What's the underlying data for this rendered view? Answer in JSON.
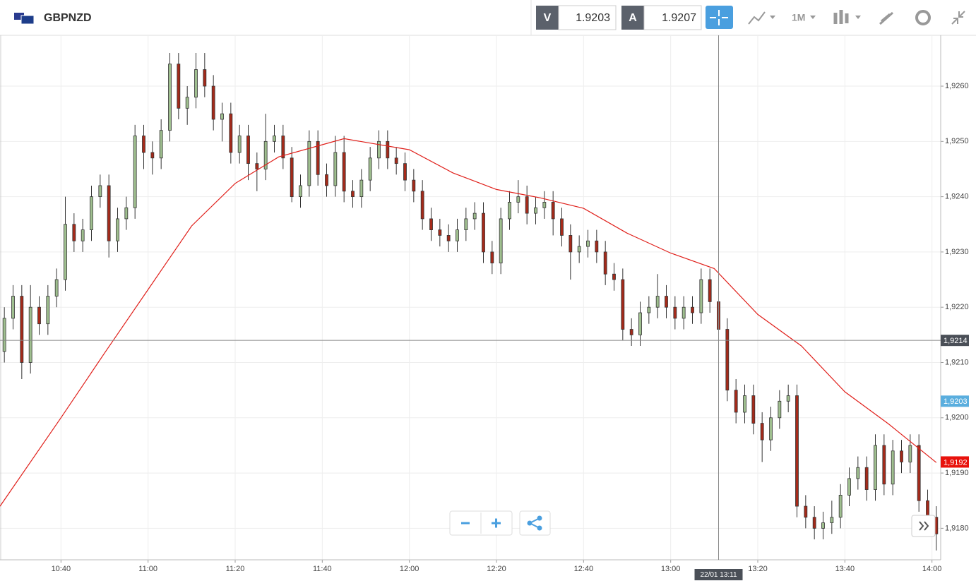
{
  "header": {
    "symbol": "GBPNZD",
    "sell_label": "V",
    "sell_price": "1.9203",
    "buy_label": "A",
    "buy_price": "1.9207",
    "timeframe": "1M"
  },
  "chart_data": {
    "type": "candlestick",
    "x": [
      "10:27",
      "10:29",
      "10:31",
      "10:33",
      "10:35",
      "10:37",
      "10:39",
      "10:41",
      "10:43",
      "10:45",
      "10:47",
      "10:49",
      "10:51",
      "10:53",
      "10:55",
      "10:57",
      "10:59",
      "11:01",
      "11:03",
      "11:05",
      "11:07",
      "11:09",
      "11:11",
      "11:13",
      "11:15",
      "11:17",
      "11:19",
      "11:21",
      "11:23",
      "11:25",
      "11:27",
      "11:29",
      "11:31",
      "11:33",
      "11:35",
      "11:37",
      "11:39",
      "11:41",
      "11:43",
      "11:45",
      "11:47",
      "11:49",
      "11:51",
      "11:53",
      "11:55",
      "11:57",
      "11:59",
      "12:01",
      "12:03",
      "12:05",
      "12:07",
      "12:09",
      "12:11",
      "12:13",
      "12:15",
      "12:17",
      "12:19",
      "12:21",
      "12:23",
      "12:25",
      "12:27",
      "12:29",
      "12:31",
      "12:33",
      "12:35",
      "12:37",
      "12:39",
      "12:41",
      "12:43",
      "12:45",
      "12:47",
      "12:49",
      "12:51",
      "12:53",
      "12:55",
      "12:57",
      "12:59",
      "13:01",
      "13:03",
      "13:05",
      "13:07",
      "13:09",
      "13:11",
      "13:13",
      "13:15",
      "13:17",
      "13:19",
      "13:21",
      "13:23",
      "13:25",
      "13:27",
      "13:29",
      "13:31",
      "13:33",
      "13:35",
      "13:37",
      "13:39",
      "13:41",
      "13:43",
      "13:45",
      "13:47",
      "13:49",
      "13:51",
      "13:53",
      "13:55",
      "13:57",
      "13:59",
      "14:01"
    ],
    "open": [
      1.9212,
      1.9218,
      1.9222,
      1.921,
      1.922,
      1.9217,
      1.9222,
      1.9225,
      1.9235,
      1.9232,
      1.9234,
      1.924,
      1.9242,
      1.9232,
      1.9236,
      1.9238,
      1.9251,
      1.9248,
      1.9247,
      1.9252,
      1.9264,
      1.9256,
      1.9258,
      1.9263,
      1.926,
      1.9254,
      1.9255,
      1.9248,
      1.9251,
      1.9246,
      1.9245,
      1.925,
      1.9251,
      1.9247,
      1.924,
      1.9242,
      1.925,
      1.9244,
      1.9242,
      1.9248,
      1.9241,
      1.924,
      1.9243,
      1.9247,
      1.925,
      1.9247,
      1.9246,
      1.9243,
      1.9241,
      1.9236,
      1.9234,
      1.9233,
      1.9232,
      1.9234,
      1.9236,
      1.9237,
      1.923,
      1.9228,
      1.9236,
      1.9239,
      1.924,
      1.9237,
      1.9238,
      1.9239,
      1.9236,
      1.9233,
      1.923,
      1.9231,
      1.9232,
      1.923,
      1.9226,
      1.9225,
      1.9216,
      1.9215,
      1.9219,
      1.922,
      1.9222,
      1.922,
      1.9218,
      1.922,
      1.9219,
      1.9225,
      1.9221,
      1.9216,
      1.9205,
      1.9201,
      1.9204,
      1.9199,
      1.9196,
      1.92,
      1.9203,
      1.9204,
      1.9184,
      1.9182,
      1.918,
      1.9181,
      1.9182,
      1.9186,
      1.9189,
      1.9191,
      1.9187,
      1.9195,
      1.9188,
      1.9194,
      1.9192,
      1.9195,
      1.9185,
      1.9182
    ],
    "high": [
      1.922,
      1.9224,
      1.9224,
      1.9224,
      1.9222,
      1.9224,
      1.9227,
      1.924,
      1.9237,
      1.9236,
      1.9242,
      1.9244,
      1.9244,
      1.9238,
      1.924,
      1.9253,
      1.9253,
      1.925,
      1.9254,
      1.9266,
      1.9266,
      1.926,
      1.9266,
      1.9266,
      1.9262,
      1.9257,
      1.9257,
      1.9253,
      1.9253,
      1.9248,
      1.9255,
      1.9253,
      1.9253,
      1.9249,
      1.9244,
      1.9252,
      1.9252,
      1.9246,
      1.9251,
      1.9251,
      1.9243,
      1.9245,
      1.9249,
      1.9252,
      1.9252,
      1.9249,
      1.9248,
      1.9245,
      1.9243,
      1.9238,
      1.9236,
      1.9235,
      1.9236,
      1.9238,
      1.9239,
      1.9239,
      1.9232,
      1.9238,
      1.9241,
      1.9243,
      1.9242,
      1.924,
      1.9241,
      1.9241,
      1.9238,
      1.9235,
      1.9233,
      1.9234,
      1.9234,
      1.9232,
      1.9228,
      1.9227,
      1.9218,
      1.9221,
      1.9222,
      1.9226,
      1.9224,
      1.9222,
      1.9222,
      1.9222,
      1.9227,
      1.9227,
      1.9223,
      1.9218,
      1.9207,
      1.9206,
      1.9206,
      1.9201,
      1.9202,
      1.9205,
      1.9206,
      1.9206,
      1.9186,
      1.9184,
      1.9183,
      1.9185,
      1.9188,
      1.9191,
      1.9193,
      1.9193,
      1.9197,
      1.9197,
      1.9196,
      1.9196,
      1.9197,
      1.9197,
      1.9187,
      1.9184
    ],
    "low": [
      1.921,
      1.9216,
      1.9207,
      1.9208,
      1.9215,
      1.9215,
      1.922,
      1.9223,
      1.923,
      1.923,
      1.9232,
      1.9238,
      1.9229,
      1.923,
      1.9234,
      1.9236,
      1.9245,
      1.9244,
      1.9245,
      1.925,
      1.9254,
      1.9253,
      1.9256,
      1.9258,
      1.9252,
      1.925,
      1.9246,
      1.9246,
      1.9243,
      1.9241,
      1.9243,
      1.9248,
      1.9245,
      1.9239,
      1.9238,
      1.924,
      1.9242,
      1.924,
      1.924,
      1.9239,
      1.9238,
      1.9238,
      1.9241,
      1.9245,
      1.9245,
      1.9244,
      1.9241,
      1.9239,
      1.9234,
      1.9232,
      1.9231,
      1.923,
      1.923,
      1.9232,
      1.9234,
      1.9228,
      1.9226,
      1.9226,
      1.9234,
      1.9237,
      1.9235,
      1.9235,
      1.9236,
      1.9233,
      1.9231,
      1.9225,
      1.9228,
      1.9229,
      1.9228,
      1.9224,
      1.9223,
      1.9214,
      1.9213,
      1.9213,
      1.9217,
      1.9218,
      1.9218,
      1.9216,
      1.9216,
      1.9217,
      1.9217,
      1.9219,
      1.9214,
      1.9203,
      1.9199,
      1.9199,
      1.9197,
      1.9192,
      1.9194,
      1.9198,
      1.9201,
      1.9182,
      1.918,
      1.9178,
      1.9178,
      1.9179,
      1.918,
      1.9184,
      1.9187,
      1.9185,
      1.9185,
      1.9186,
      1.9186,
      1.919,
      1.919,
      1.9183,
      1.918,
      1.9176
    ],
    "close": [
      1.9218,
      1.9222,
      1.921,
      1.922,
      1.9217,
      1.9222,
      1.9225,
      1.9235,
      1.9232,
      1.9234,
      1.924,
      1.9242,
      1.9232,
      1.9236,
      1.9238,
      1.9251,
      1.9248,
      1.9247,
      1.9252,
      1.9264,
      1.9256,
      1.9258,
      1.9263,
      1.926,
      1.9254,
      1.9255,
      1.9248,
      1.9251,
      1.9246,
      1.9245,
      1.925,
      1.9251,
      1.9247,
      1.924,
      1.9242,
      1.925,
      1.9244,
      1.9242,
      1.9248,
      1.9241,
      1.924,
      1.9243,
      1.9247,
      1.925,
      1.9247,
      1.9246,
      1.9243,
      1.9241,
      1.9236,
      1.9234,
      1.9233,
      1.9232,
      1.9234,
      1.9236,
      1.9237,
      1.923,
      1.9228,
      1.9236,
      1.9239,
      1.924,
      1.9237,
      1.9238,
      1.9239,
      1.9236,
      1.9233,
      1.923,
      1.9231,
      1.9232,
      1.923,
      1.9226,
      1.9225,
      1.9216,
      1.9215,
      1.9219,
      1.922,
      1.9222,
      1.922,
      1.9218,
      1.922,
      1.9219,
      1.9225,
      1.9221,
      1.9216,
      1.9205,
      1.9201,
      1.9204,
      1.9199,
      1.9196,
      1.92,
      1.9203,
      1.9204,
      1.9184,
      1.9182,
      1.918,
      1.9181,
      1.9182,
      1.9186,
      1.9189,
      1.9191,
      1.9187,
      1.9195,
      1.9188,
      1.9194,
      1.9192,
      1.9195,
      1.9185,
      1.9182,
      1.9179
    ],
    "up_color": "#9fbf8f",
    "down_color": "#a52a1a",
    "ma": {
      "color": "#e0201b",
      "x": [
        "10:26",
        "10:40",
        "10:50",
        "11:00",
        "11:10",
        "11:20",
        "11:30",
        "11:40",
        "11:45",
        "12:00",
        "12:10",
        "12:20",
        "12:30",
        "12:40",
        "12:50",
        "13:00",
        "13:10",
        "13:20",
        "13:30",
        "13:40",
        "13:50",
        "14:01"
      ],
      "values": [
        1.9184,
        1.92,
        1.92117,
        1.92232,
        1.92347,
        1.92424,
        1.92472,
        1.92494,
        1.92505,
        1.92485,
        1.92443,
        1.92413,
        1.92398,
        1.92379,
        1.92334,
        1.92298,
        1.9227,
        1.92187,
        1.9213,
        1.92047,
        1.91989,
        1.91919
      ]
    },
    "xlim": [
      "10:26",
      "14:02"
    ],
    "xticks": [
      "10:40",
      "11:00",
      "11:20",
      "11:40",
      "12:00",
      "12:20",
      "12:40",
      "13:00",
      "13:20",
      "13:40",
      "14:00"
    ],
    "ylim": [
      1.91743,
      1.92692
    ],
    "yticks": [
      {
        "value": 1.918,
        "label": "1,9180"
      },
      {
        "value": 1.919,
        "label": "1,9190"
      },
      {
        "value": 1.92,
        "label": "1,9200"
      },
      {
        "value": 1.921,
        "label": "1,9210"
      },
      {
        "value": 1.922,
        "label": "1,9220"
      },
      {
        "value": 1.923,
        "label": "1,9230"
      },
      {
        "value": 1.924,
        "label": "1,9240"
      },
      {
        "value": 1.925,
        "label": "1,9250"
      },
      {
        "value": 1.926,
        "label": "1,9260"
      }
    ],
    "grid": true,
    "crosshair": {
      "x": "13:11",
      "x_label": "22/01 13:11",
      "y": {
        "value": 1.9214,
        "label": "1,9214"
      }
    },
    "bid_tag": {
      "value": 1.9203,
      "label": "1,9203",
      "color": "#5aaede"
    },
    "last_tag": {
      "value": 1.9192,
      "label": "1,9192",
      "color": "#e8120c"
    }
  }
}
